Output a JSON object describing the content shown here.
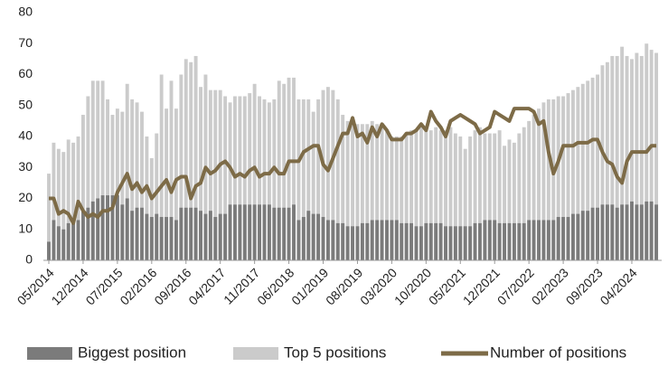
{
  "chart_data": {
    "type": "bar-line",
    "categories": [
      "05/2014",
      null,
      null,
      null,
      null,
      null,
      null,
      "12/2014",
      null,
      null,
      null,
      null,
      null,
      null,
      "07/2015",
      null,
      null,
      null,
      null,
      null,
      null,
      "02/2016",
      null,
      null,
      null,
      null,
      null,
      null,
      "09/2016",
      null,
      null,
      null,
      null,
      null,
      null,
      "04/2017",
      null,
      null,
      null,
      null,
      null,
      null,
      "11/2017",
      null,
      null,
      null,
      null,
      null,
      null,
      "06/2018",
      null,
      null,
      null,
      null,
      null,
      null,
      "01/2019",
      null,
      null,
      null,
      null,
      null,
      null,
      "08/2019",
      null,
      null,
      null,
      null,
      null,
      null,
      "03/2020",
      null,
      null,
      null,
      null,
      null,
      null,
      "10/2020",
      null,
      null,
      null,
      null,
      null,
      null,
      "05/2021",
      null,
      null,
      null,
      null,
      null,
      null,
      "12/2021",
      null,
      null,
      null,
      null,
      null,
      null,
      "07/2022",
      null,
      null,
      null,
      null,
      null,
      null,
      "02/2023",
      null,
      null,
      null,
      null,
      null,
      null,
      "09/2023",
      null,
      null,
      null,
      null,
      null,
      null,
      "04/2024",
      null,
      null,
      null,
      null,
      null
    ],
    "series": [
      {
        "name": "Top 5 positions",
        "kind": "bar",
        "color": "#cbcbcb",
        "values": [
          28,
          38,
          36,
          35,
          39,
          38,
          40,
          47,
          53,
          58,
          58,
          58,
          52,
          47,
          49,
          48,
          57,
          52,
          51,
          48,
          40,
          33,
          41,
          60,
          49,
          58,
          49,
          60,
          65,
          64,
          66,
          56,
          60,
          55,
          55,
          55,
          53,
          51,
          53,
          53,
          53,
          54,
          57,
          53,
          52,
          51,
          52,
          58,
          57,
          59,
          59,
          52,
          52,
          52,
          48,
          52,
          55,
          56,
          55,
          52,
          47,
          45,
          44,
          44,
          44,
          44,
          45,
          44,
          44,
          42,
          40,
          40,
          40,
          41,
          42,
          42,
          44,
          43,
          42,
          43,
          42,
          42,
          43,
          41,
          40,
          36,
          40,
          42,
          43,
          41,
          41,
          41,
          42,
          37,
          39,
          38,
          41,
          43,
          45,
          47,
          49,
          51,
          52,
          52,
          53,
          53,
          54,
          55,
          56,
          57,
          58,
          59,
          60,
          63,
          64,
          66,
          66,
          69,
          66,
          65,
          67,
          66,
          70,
          68,
          67
        ]
      },
      {
        "name": "Biggest position",
        "kind": "bar",
        "color": "#7b7b7b",
        "values": [
          6,
          13,
          11,
          10,
          12,
          12,
          13,
          16,
          17,
          19,
          20,
          21,
          21,
          21,
          21,
          18,
          20,
          16,
          17,
          17,
          15,
          14,
          15,
          14,
          14,
          14,
          13,
          17,
          17,
          17,
          17,
          16,
          15,
          16,
          14,
          15,
          15,
          18,
          18,
          18,
          18,
          18,
          18,
          18,
          18,
          18,
          17,
          17,
          17,
          17,
          18,
          13,
          14,
          16,
          15,
          15,
          14,
          13,
          13,
          12,
          12,
          11,
          11,
          11,
          12,
          12,
          13,
          13,
          13,
          13,
          13,
          13,
          12,
          12,
          12,
          11,
          11,
          12,
          12,
          12,
          12,
          11,
          11,
          11,
          11,
          11,
          11,
          12,
          12,
          13,
          13,
          13,
          12,
          12,
          12,
          12,
          12,
          12,
          13,
          13,
          13,
          13,
          13,
          13,
          14,
          14,
          14,
          15,
          15,
          16,
          16,
          17,
          17,
          18,
          18,
          18,
          17,
          18,
          18,
          19,
          18,
          18,
          19,
          19,
          18
        ]
      },
      {
        "name": "Number of positions",
        "kind": "line",
        "color": "#7d6b47",
        "values": [
          20,
          20,
          15,
          16,
          15,
          12,
          19,
          16,
          14,
          15,
          14,
          16,
          16,
          17,
          22,
          25,
          28,
          23,
          25,
          22,
          24,
          20,
          22,
          24,
          26,
          22,
          26,
          27,
          27,
          20,
          24,
          25,
          30,
          28,
          29,
          31,
          32,
          30,
          27,
          28,
          27,
          29,
          30,
          27,
          28,
          28,
          30,
          28,
          28,
          32,
          32,
          32,
          35,
          36,
          37,
          37,
          31,
          29,
          33,
          37,
          41,
          41,
          46,
          40,
          41,
          38,
          43,
          40,
          44,
          42,
          39,
          39,
          39,
          41,
          41,
          42,
          44,
          42,
          48,
          45,
          43,
          40,
          45,
          46,
          47,
          46,
          45,
          44,
          41,
          42,
          43,
          48,
          47,
          46,
          45,
          49,
          49,
          49,
          49,
          48,
          44,
          45,
          35,
          28,
          32,
          37,
          37,
          37,
          38,
          38,
          38,
          39,
          39,
          35,
          32,
          31,
          27,
          25,
          32,
          35,
          35,
          35,
          35,
          37,
          37
        ]
      }
    ],
    "legend_order": [
      1,
      0,
      2
    ],
    "ylim": [
      0,
      80
    ],
    "yticks": [
      0,
      10,
      20,
      30,
      40,
      50,
      60,
      70,
      80
    ],
    "grid": false
  }
}
